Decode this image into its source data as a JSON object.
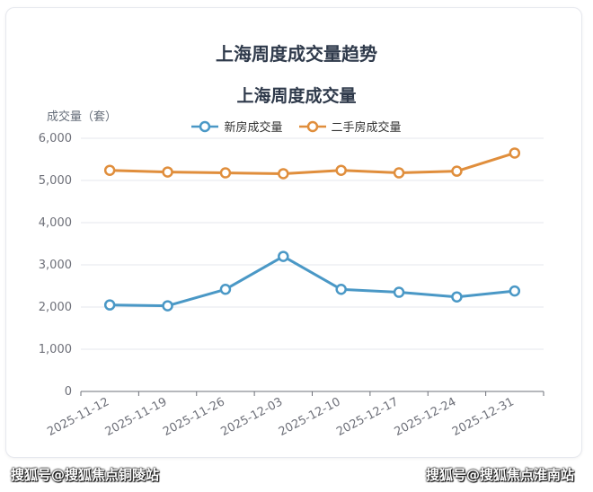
{
  "page": {
    "card_title": "上海周度成交量趋势",
    "watermark_left": "搜狐号@搜狐焦点铜陵站",
    "watermark_right": "搜狐号@搜狐焦点淮南站"
  },
  "colors": {
    "new_house": "#4a98c6",
    "second_hand": "#e08e3c",
    "grid": "#e4e7ed",
    "axis": "#6e7079"
  },
  "chart_data": {
    "type": "line",
    "title": "上海周度成交量",
    "ylabel": "成交量（套）",
    "xlabel": "",
    "categories": [
      "2025-11-12",
      "2025-11-19",
      "2025-11-26",
      "2025-12-03",
      "2025-12-10",
      "2025-12-17",
      "2025-12-24",
      "2025-12-31"
    ],
    "series": [
      {
        "name": "新房成交量",
        "values": [
          2050,
          2030,
          2420,
          3200,
          2420,
          2350,
          2240,
          2380
        ]
      },
      {
        "name": "二手房成交量",
        "values": [
          5240,
          5200,
          5180,
          5160,
          5240,
          5180,
          5220,
          5650
        ]
      }
    ],
    "ylim": [
      0,
      6000
    ],
    "yticks": [
      "0",
      "1,000",
      "2,000",
      "3,000",
      "4,000",
      "5,000",
      "6,000"
    ],
    "grid": true,
    "legend": "top-center"
  }
}
